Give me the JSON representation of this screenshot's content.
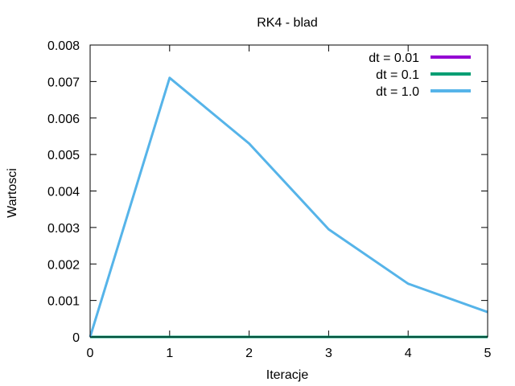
{
  "chart_data": {
    "type": "line",
    "title": "RK4 - blad",
    "xlabel": "Iteracje",
    "ylabel": "Wartosci",
    "xlim": [
      0,
      5
    ],
    "ylim": [
      0,
      0.008
    ],
    "x_ticks": [
      0,
      1,
      2,
      3,
      4,
      5
    ],
    "x_tick_labels": [
      "0",
      "1",
      "2",
      "3",
      "4",
      "5"
    ],
    "y_ticks": [
      0,
      0.001,
      0.002,
      0.003,
      0.004,
      0.005,
      0.006,
      0.007,
      0.008
    ],
    "y_tick_labels": [
      "0",
      "0.001",
      "0.002",
      "0.003",
      "0.004",
      "0.005",
      "0.006",
      "0.007",
      "0.008"
    ],
    "grid": false,
    "legend_position": "top-right",
    "series": [
      {
        "name": "dt = 0.01",
        "color": "#9400d3",
        "x": [
          0,
          5
        ],
        "y": [
          0,
          0
        ]
      },
      {
        "name": "dt = 0.1",
        "color": "#009e73",
        "x": [
          0,
          1,
          2,
          3,
          4,
          5
        ],
        "y": [
          0,
          0,
          0,
          0,
          0,
          0
        ]
      },
      {
        "name": "dt = 1.0",
        "color": "#56b4e9",
        "x": [
          0,
          1,
          2,
          3,
          4,
          5
        ],
        "y": [
          0,
          0.0071,
          0.0053,
          0.00295,
          0.00146,
          0.00068
        ]
      }
    ]
  }
}
